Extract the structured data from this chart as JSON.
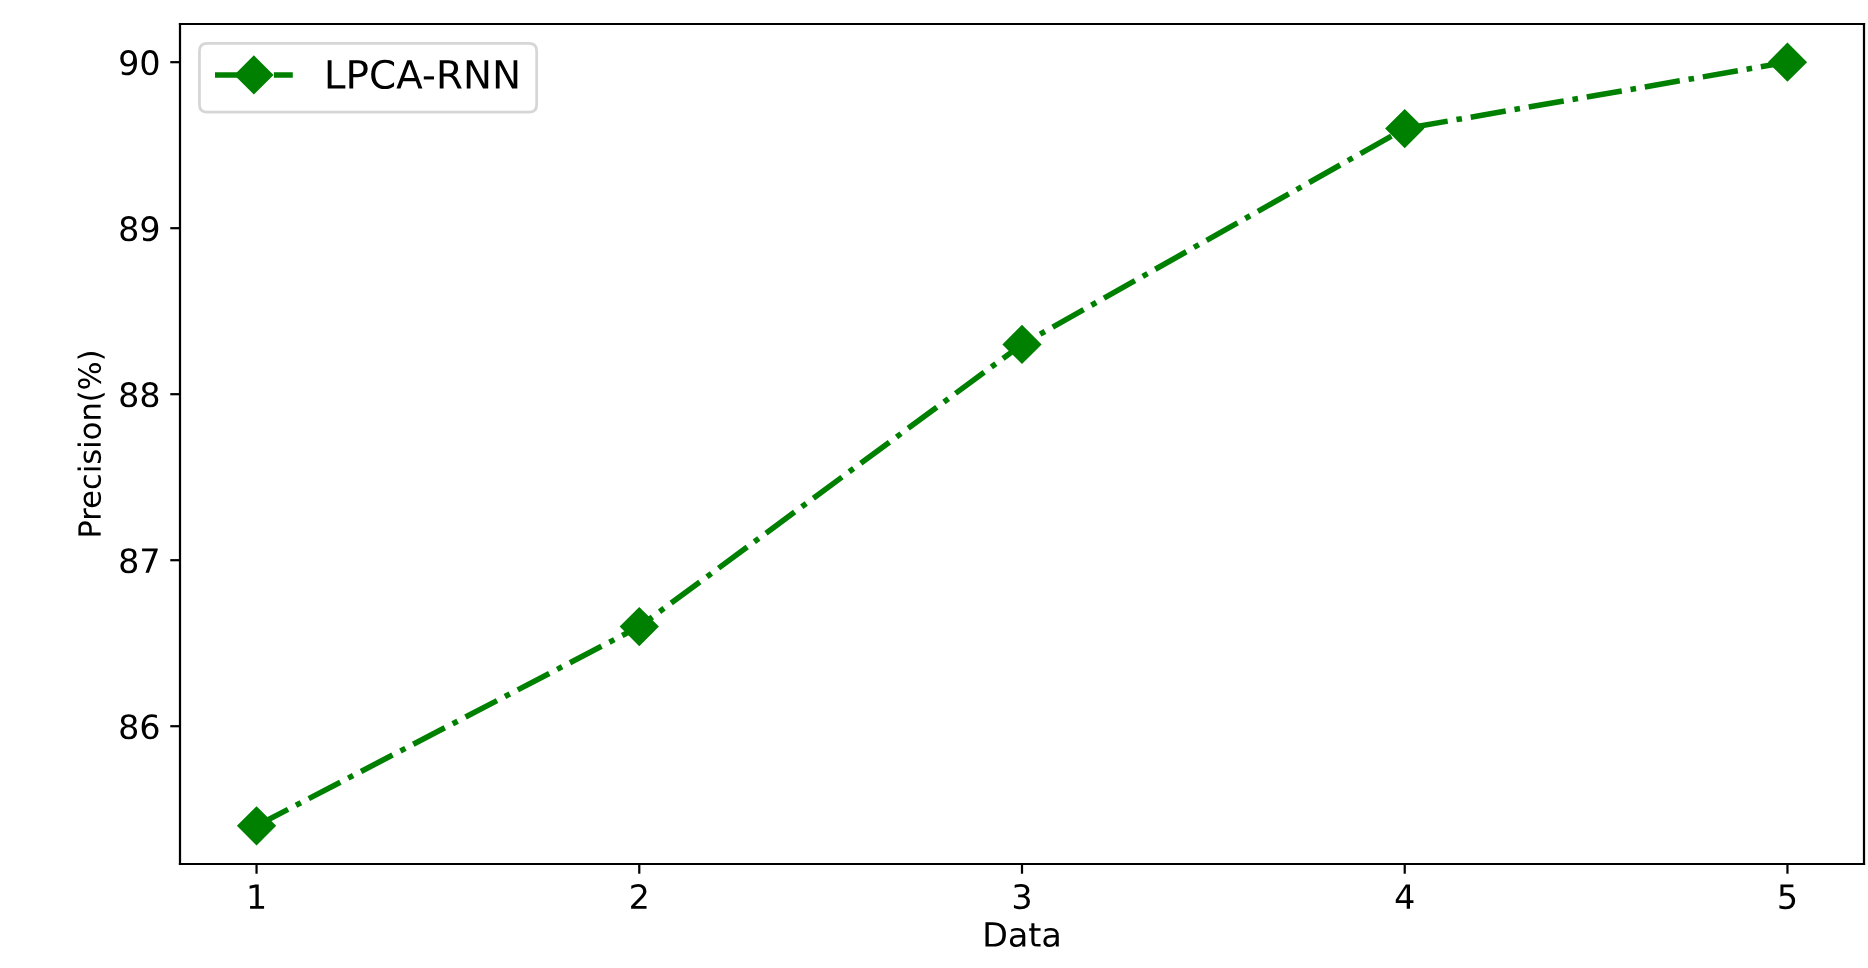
{
  "chart_data": {
    "type": "line",
    "xlabel": "Data",
    "ylabel": "Precision(%)",
    "x": [
      1,
      2,
      3,
      4,
      5
    ],
    "series": [
      {
        "name": "LPCA-RNN",
        "color": "#008000",
        "values": [
          85.4,
          86.6,
          88.3,
          89.6,
          90.0
        ]
      }
    ],
    "xlim": [
      0.8,
      5.2
    ],
    "xticks": [
      1,
      2,
      3,
      4,
      5
    ],
    "ylim": [
      85.17,
      90.23
    ],
    "yticks": [
      86,
      87,
      88,
      89,
      90
    ],
    "grid": false,
    "legend": "top left",
    "marker": "diamond",
    "line_style": "dashdot"
  }
}
